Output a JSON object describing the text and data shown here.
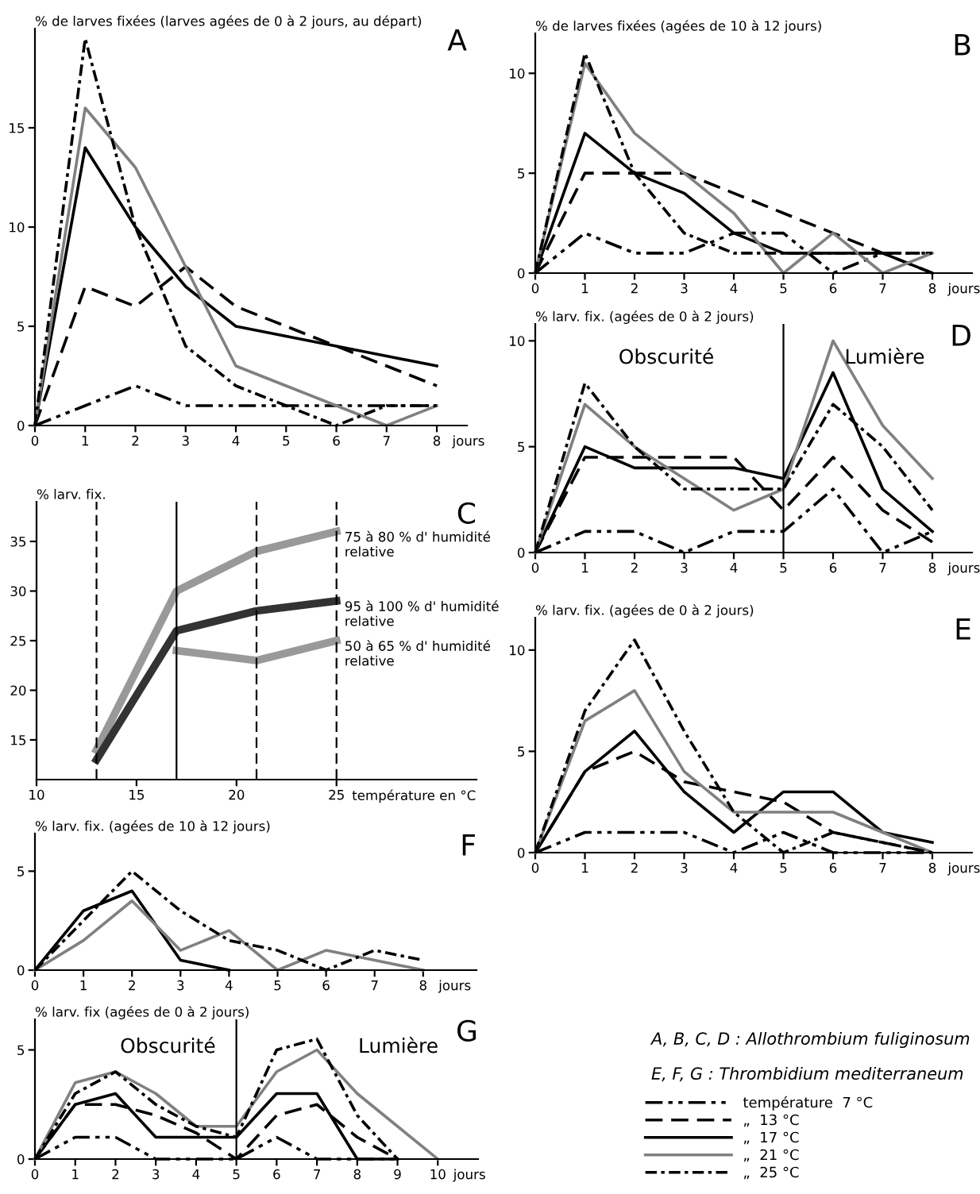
{
  "chart_data": [
    {
      "type": "line",
      "title": "A",
      "ylabel": "% de larves fixées (larves agées de 0 à 2 jours, au départ)",
      "xlabel": "jours",
      "x": [
        0,
        1,
        2,
        3,
        4,
        5,
        6,
        7,
        8
      ],
      "xlim": [
        0,
        8.6
      ],
      "ylim": [
        0,
        20
      ],
      "xticks": [
        0,
        1,
        2,
        3,
        4,
        5,
        6,
        7,
        8
      ],
      "yticks": [
        0,
        5,
        10,
        15
      ],
      "grid": false,
      "legend": false,
      "series": [
        {
          "color": "#000000",
          "line_style": "dashdotdot",
          "values": [
            0,
            1,
            2,
            1,
            1,
            1,
            1,
            1,
            1
          ]
        },
        {
          "color": "#000000",
          "line_style": "dashed",
          "values": [
            0,
            7,
            6,
            8,
            6,
            5,
            4,
            3,
            2
          ]
        },
        {
          "color": "#000000",
          "line_style": "solid",
          "values": [
            0,
            14,
            10,
            7,
            5,
            4.5,
            4,
            3.5,
            3
          ]
        },
        {
          "color": "#808080",
          "line_style": "solid",
          "values": [
            0,
            16,
            13,
            8,
            3,
            2,
            1,
            0,
            1
          ]
        },
        {
          "color": "#000000",
          "line_style": "dashdot",
          "values": [
            0,
            19.5,
            10,
            4,
            2,
            1,
            0,
            1,
            1
          ]
        }
      ]
    },
    {
      "type": "line",
      "title": "B",
      "ylabel": "% de larves fixées (agées de 10 à 12 jours)",
      "xlabel": "jours",
      "x": [
        0,
        1,
        2,
        3,
        4,
        5,
        6,
        7,
        8
      ],
      "xlim": [
        0,
        8.8
      ],
      "ylim": [
        0,
        12
      ],
      "xticks": [
        0,
        1,
        2,
        3,
        4,
        5,
        6,
        7,
        8
      ],
      "yticks": [
        0,
        5,
        10
      ],
      "grid": false,
      "legend": false,
      "series": [
        {
          "color": "#000000",
          "line_style": "dashdotdot",
          "values": [
            0,
            2,
            1,
            1,
            2,
            2,
            0,
            1,
            1
          ]
        },
        {
          "color": "#000000",
          "line_style": "dashed",
          "values": [
            0,
            5,
            5,
            5,
            4,
            3,
            2,
            1,
            0
          ]
        },
        {
          "color": "#000000",
          "line_style": "solid",
          "values": [
            0,
            7,
            5,
            4,
            2,
            1,
            1,
            1,
            0
          ]
        },
        {
          "color": "#808080",
          "line_style": "solid",
          "values": [
            0,
            10.5,
            7,
            5,
            3,
            0,
            2,
            0,
            1
          ]
        },
        {
          "color": "#000000",
          "line_style": "dashdot",
          "values": [
            0,
            11,
            5,
            2,
            1,
            1,
            1,
            1,
            1
          ]
        }
      ]
    },
    {
      "type": "line",
      "title": "C",
      "ylabel": "% larv. fix.",
      "xlabel": "température en °C",
      "x": [
        13,
        17,
        21,
        25
      ],
      "xlim": [
        10,
        32
      ],
      "ylim": [
        11,
        39
      ],
      "xticks": [
        10,
        15,
        20,
        25
      ],
      "yticks": [
        15,
        20,
        25,
        30,
        35
      ],
      "grid": false,
      "legend": false,
      "ref_lines": [
        {
          "axis": "x",
          "value": 13,
          "color": "#000000",
          "line_style": "dashed"
        },
        {
          "axis": "x",
          "value": 17,
          "color": "#000000",
          "line_style": "solid"
        },
        {
          "axis": "x",
          "value": 21,
          "color": "#000000",
          "line_style": "dashed"
        },
        {
          "axis": "x",
          "value": 25,
          "color": "#000000",
          "line_style": "dashed"
        }
      ],
      "series": [
        {
          "name": "75 à 80 % d' humidité\nrelative",
          "color": "#999999",
          "line_style": "solid",
          "values": [
            14,
            30,
            34,
            36
          ]
        },
        {
          "name": "95 à 100 % d' humidité\nrelative",
          "color": "#333333",
          "line_style": "solid",
          "values": [
            13,
            26,
            28,
            29
          ]
        },
        {
          "name": "50 à 65 % d' humidité\nrelative",
          "color": "#999999",
          "line_style": "solid",
          "values": [
            null,
            24,
            23,
            25
          ]
        }
      ]
    },
    {
      "type": "line",
      "title": "D",
      "ylabel": "% larv. fix. (agées de 0 à 2 jours)",
      "xlabel": "jours",
      "x": [
        0,
        1,
        2,
        3,
        4,
        5,
        6,
        7,
        8
      ],
      "xlim": [
        0,
        8.8
      ],
      "ylim": [
        0,
        10.8
      ],
      "xticks": [
        0,
        1,
        2,
        3,
        4,
        5,
        6,
        7,
        8
      ],
      "yticks": [
        0,
        5,
        10
      ],
      "grid": false,
      "legend": false,
      "ref_lines": [
        {
          "axis": "x",
          "value": 5,
          "color": "#000000",
          "line_style": "solid"
        }
      ],
      "annotations": [
        "Obscurité",
        "Lumière"
      ],
      "series": [
        {
          "color": "#000000",
          "line_style": "dashdotdot",
          "values": [
            0,
            1,
            1,
            0,
            1,
            1,
            3,
            0,
            1
          ]
        },
        {
          "color": "#000000",
          "line_style": "dashed",
          "values": [
            0,
            4.5,
            4.5,
            4.5,
            4.5,
            2,
            4.5,
            2,
            0.5
          ]
        },
        {
          "color": "#000000",
          "line_style": "solid",
          "values": [
            0,
            5,
            4,
            4,
            4,
            3.5,
            8.5,
            3,
            1
          ]
        },
        {
          "color": "#808080",
          "line_style": "solid",
          "values": [
            0,
            7,
            5,
            3.5,
            2,
            3,
            10,
            6,
            3.5
          ]
        },
        {
          "color": "#000000",
          "line_style": "dashdot",
          "values": [
            0,
            8,
            5,
            3,
            3,
            3,
            7,
            5,
            2
          ]
        }
      ]
    },
    {
      "type": "line",
      "title": "E",
      "ylabel": "% larv. fix. (agées de 0 à 2 jours)",
      "xlabel": "jours",
      "x": [
        0,
        1,
        2,
        3,
        4,
        5,
        6,
        7,
        8
      ],
      "xlim": [
        0,
        8.8
      ],
      "ylim": [
        0,
        11.6
      ],
      "xticks": [
        0,
        1,
        2,
        3,
        4,
        5,
        6,
        7,
        8
      ],
      "yticks": [
        0,
        5,
        10
      ],
      "grid": false,
      "legend": false,
      "series": [
        {
          "color": "#000000",
          "line_style": "dashdotdot",
          "values": [
            0,
            1,
            1,
            1,
            0,
            1,
            0,
            0,
            0
          ]
        },
        {
          "color": "#000000",
          "line_style": "dashed",
          "values": [
            0,
            4,
            5,
            3.5,
            3,
            2.5,
            1,
            0.5,
            0
          ]
        },
        {
          "color": "#000000",
          "line_style": "solid",
          "values": [
            0,
            4,
            6,
            3,
            1,
            3,
            3,
            1,
            0.5
          ]
        },
        {
          "color": "#808080",
          "line_style": "solid",
          "values": [
            0,
            6.5,
            8,
            4,
            2,
            2,
            2,
            1,
            0
          ]
        },
        {
          "color": "#000000",
          "line_style": "dashdot",
          "values": [
            0,
            7,
            10.5,
            6,
            2,
            0,
            1,
            0.5,
            0
          ]
        }
      ]
    },
    {
      "type": "line",
      "title": "F",
      "ylabel": "% larv. fix. (agées de 10 à 12 jours)",
      "xlabel": "jours",
      "x": [
        0,
        1,
        2,
        3,
        4,
        5,
        6,
        7,
        8
      ],
      "xlim": [
        0,
        9.1
      ],
      "ylim": [
        0,
        6.9
      ],
      "xticks": [
        0,
        1,
        2,
        3,
        4,
        5,
        6,
        7,
        8
      ],
      "yticks": [
        0,
        5
      ],
      "grid": false,
      "legend": false,
      "series": [
        {
          "color": "#000000",
          "line_style": "solid",
          "values": [
            0,
            3,
            4,
            0.5,
            0,
            null,
            null,
            null,
            null
          ]
        },
        {
          "color": "#808080",
          "line_style": "solid",
          "values": [
            0,
            1.5,
            3.5,
            1,
            2,
            0,
            1,
            0.5,
            0
          ]
        },
        {
          "color": "#000000",
          "line_style": "dashdot",
          "values": [
            0,
            2.5,
            5,
            3,
            1.5,
            1,
            0,
            1,
            0.5
          ]
        }
      ]
    },
    {
      "type": "line",
      "title": "G",
      "ylabel": "% larv. fix (agées de 0 à 2 jours)",
      "x": [
        0,
        1,
        2,
        3,
        4,
        5,
        6,
        7,
        8,
        9,
        10
      ],
      "xlim": [
        0,
        11
      ],
      "ylim": [
        0,
        6.4
      ],
      "xlabel": "jours",
      "xticks": [
        0,
        1,
        2,
        3,
        4,
        5,
        6,
        7,
        8,
        9,
        10
      ],
      "yticks": [
        0,
        5
      ],
      "grid": false,
      "legend": "right",
      "ref_lines": [
        {
          "axis": "x",
          "value": 5,
          "color": "#000000",
          "line_style": "solid"
        }
      ],
      "annotations": [
        "Obscurité",
        "Lumière",
        "A, B, C, D : Allothrombium fuliginosum",
        "E, F, G : Thrombidium mediterraneum"
      ],
      "series": [
        {
          "name": "température  7 °C",
          "color": "#000000",
          "line_style": "dashdotdot",
          "values": [
            0,
            1,
            1,
            0,
            0,
            0,
            1,
            0,
            0,
            0,
            null
          ]
        },
        {
          "name": "„  13 °C",
          "color": "#000000",
          "line_style": "dashed",
          "values": [
            0,
            2.5,
            2.5,
            2,
            1.2,
            0,
            2,
            2.5,
            1,
            0,
            null
          ]
        },
        {
          "name": "„  17 °C",
          "color": "#000000",
          "line_style": "solid",
          "values": [
            0,
            2.5,
            3,
            1,
            1,
            1,
            3,
            3,
            0,
            0,
            null
          ]
        },
        {
          "name": "„  21 °C",
          "color": "#808080",
          "line_style": "solid",
          "values": [
            0,
            3.5,
            4,
            3,
            1.5,
            1.5,
            4,
            5,
            3,
            1.5,
            0
          ]
        },
        {
          "name": "„  25 °C",
          "color": "#000000",
          "line_style": "dashdot",
          "values": [
            0,
            3,
            4,
            2.5,
            1.5,
            1,
            5,
            5.5,
            2,
            0,
            null
          ]
        }
      ]
    }
  ]
}
